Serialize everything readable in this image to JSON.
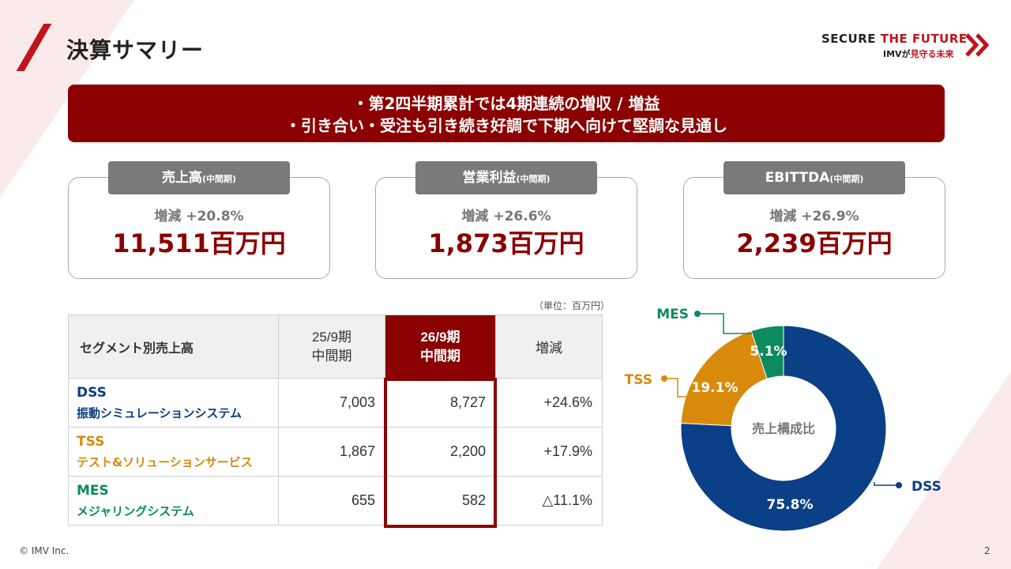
{
  "title": "決算サマリー",
  "brand": {
    "line1_a": "SECURE ",
    "line1_b": "THE FUTURE",
    "line2_a": "IMVが",
    "line2_b": "見守る未来"
  },
  "banner": [
    "・第2四半期累計では4期連続の増収 / 増益",
    "・引き合い・受注も引き続き好調で下期へ向けて堅調な見通し"
  ],
  "kpis": [
    {
      "label": "売上高",
      "label_small": "(中間期)",
      "change": "増減 +20.8%",
      "value": "11,511百万円"
    },
    {
      "label": "営業利益",
      "label_small": "(中間期)",
      "change": "増減 +26.6%",
      "value": "1,873百万円"
    },
    {
      "label": "EBITTDA",
      "label_small": "(中間期)",
      "change": "増減 +26.9%",
      "value": "2,239百万円"
    }
  ],
  "unit_note": "（単位：百万円）",
  "table": {
    "headers": {
      "name": "セグメント別売上高",
      "prev_1": "25/9期",
      "prev_2": "中間期",
      "curr_1": "26/9期",
      "curr_2": "中間期",
      "diff": "増減"
    },
    "rows": [
      {
        "code": "DSS",
        "sub": "振動シミュレーションシステム",
        "prev": "7,003",
        "curr": "8,727",
        "diff": "+24.6%",
        "color": "#0b3f86"
      },
      {
        "code": "TSS",
        "sub": "テスト&ソリューションサービス",
        "prev": "1,867",
        "curr": "2,200",
        "diff": "+17.9%",
        "color": "#d98a0b"
      },
      {
        "code": "MES",
        "sub": "メジャリングシステム",
        "prev": "655",
        "curr": "582",
        "diff": "△11.1%",
        "color": "#0e8a5f"
      }
    ]
  },
  "chart_data": {
    "type": "pie",
    "center_label": "売上構成比",
    "categories": [
      "DSS",
      "TSS",
      "MES"
    ],
    "values": [
      75.8,
      19.1,
      5.1
    ],
    "labels": [
      "75.8%",
      "19.1%",
      "5.1%"
    ],
    "colors": [
      "#0b3f86",
      "#d98a0b",
      "#0e8a5f"
    ]
  },
  "footer": {
    "copyright": "© IMV Inc.",
    "page": "2"
  }
}
